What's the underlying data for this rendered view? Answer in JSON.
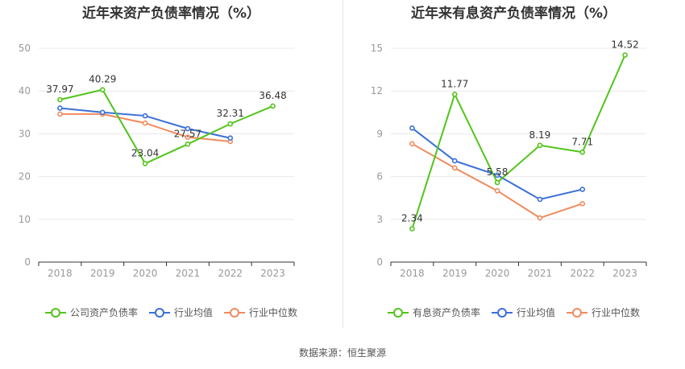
{
  "source_label": "数据来源：恒生聚源",
  "colors": {
    "green": "#52c41a",
    "blue": "#3a6fd8",
    "orange": "#f08a5d",
    "grid": "#e8e8e8",
    "axis": "#999999"
  },
  "chart_data": [
    {
      "type": "line",
      "title": "近年来资产负债率情况（%）",
      "categories": [
        "2018",
        "2019",
        "2020",
        "2021",
        "2022",
        "2023"
      ],
      "ylim": [
        0,
        50
      ],
      "yticks": [
        0,
        10,
        20,
        30,
        40,
        50
      ],
      "grid": true,
      "legend_position": "bottom",
      "series": [
        {
          "name": "公司资产负债率",
          "color": "#52c41a",
          "values": [
            37.97,
            40.29,
            23.04,
            27.57,
            32.31,
            36.48
          ],
          "labels": [
            "37.97",
            "40.29",
            "23.04",
            "27.57",
            "32.31",
            "36.48"
          ]
        },
        {
          "name": "行业均值",
          "color": "#3a6fd8",
          "values": [
            36.0,
            35.0,
            34.2,
            31.2,
            29.0,
            null
          ],
          "labels": []
        },
        {
          "name": "行业中位数",
          "color": "#f08a5d",
          "values": [
            34.6,
            34.6,
            32.5,
            29.2,
            28.2,
            null
          ],
          "labels": []
        }
      ]
    },
    {
      "type": "line",
      "title": "近年来有息资产负债率情况（%）",
      "categories": [
        "2018",
        "2019",
        "2020",
        "2021",
        "2022",
        "2023"
      ],
      "ylim": [
        0,
        15
      ],
      "yticks": [
        0,
        3,
        6,
        9,
        12,
        15
      ],
      "grid": true,
      "legend_position": "bottom",
      "series": [
        {
          "name": "有息资产负债率",
          "color": "#52c41a",
          "values": [
            2.34,
            11.77,
            5.58,
            8.19,
            7.71,
            14.52
          ],
          "labels": [
            "2.34",
            "11.77",
            "5.58",
            "8.19",
            "7.71",
            "14.52"
          ]
        },
        {
          "name": "行业均值",
          "color": "#3a6fd8",
          "values": [
            9.4,
            7.1,
            6.1,
            4.4,
            5.1,
            null
          ],
          "labels": []
        },
        {
          "name": "行业中位数",
          "color": "#f08a5d",
          "values": [
            8.3,
            6.6,
            5.0,
            3.1,
            4.1,
            null
          ],
          "labels": []
        }
      ]
    }
  ]
}
